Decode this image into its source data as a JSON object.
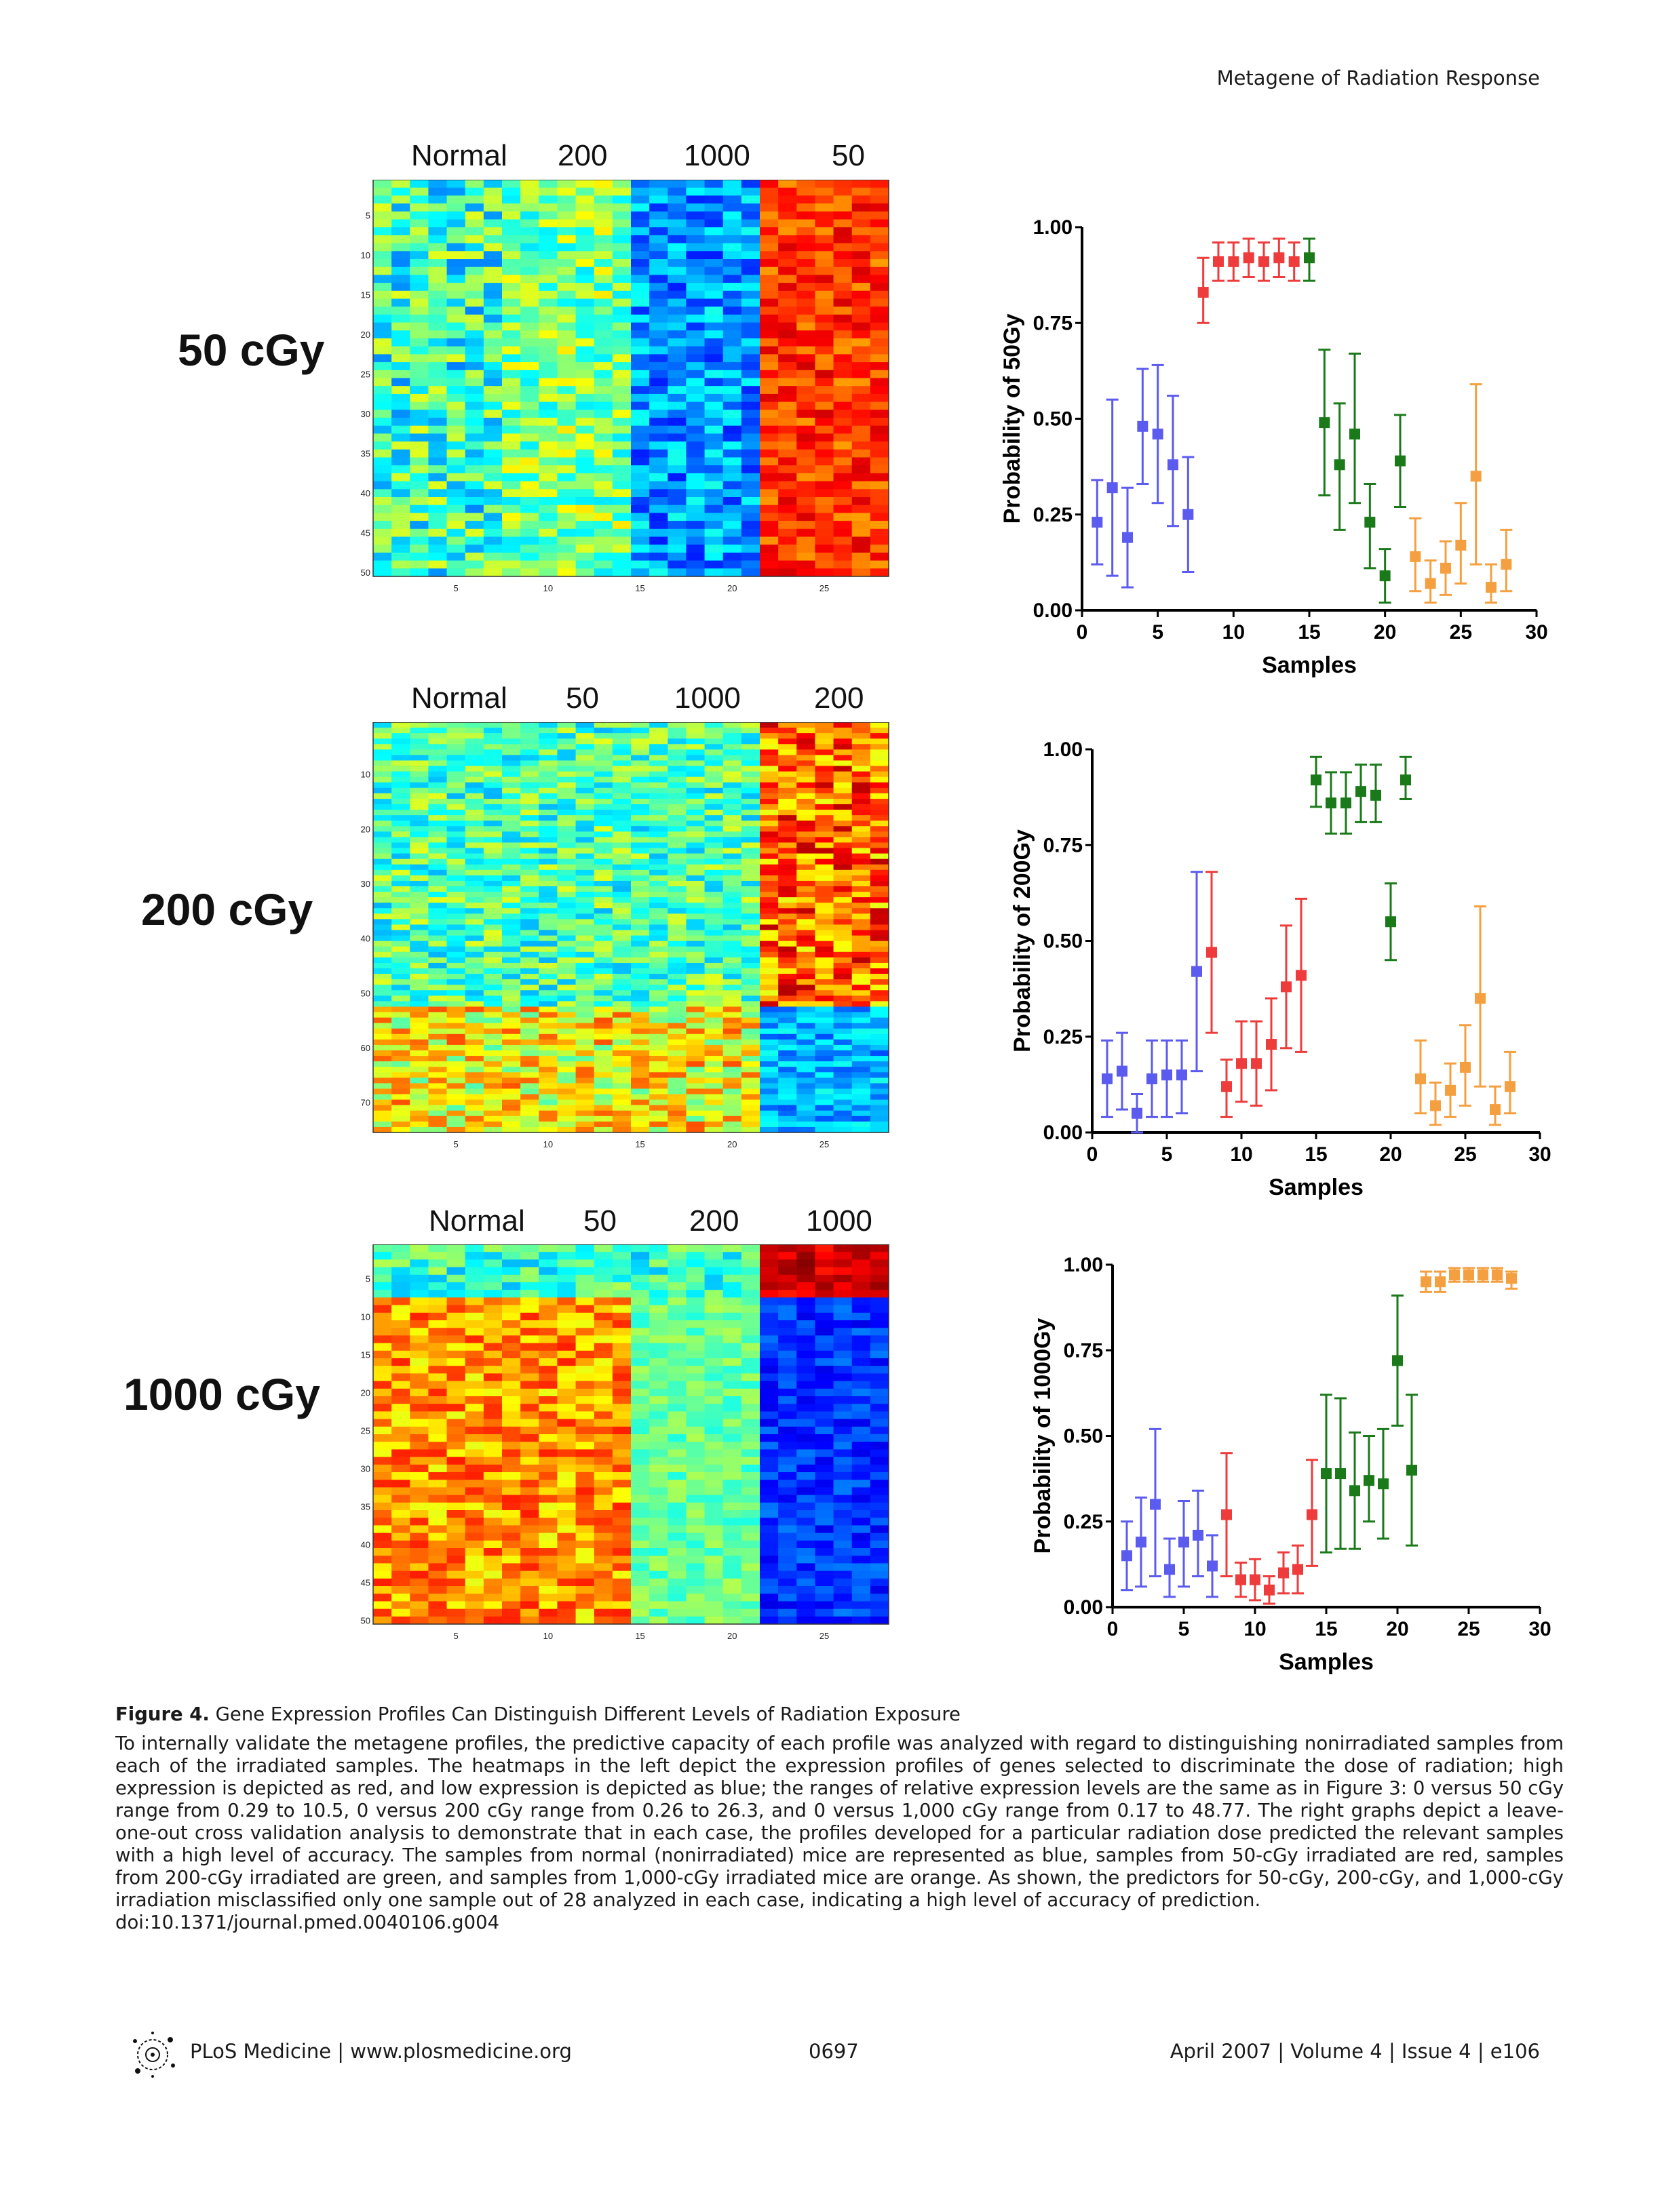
{
  "running_head": "Metagene of Radiation Response",
  "panels": [
    {
      "dose_label": "50 cGy",
      "heatmap_groups": [
        "Normal",
        "200",
        "1000",
        "50"
      ],
      "heatmap_gene_count": 50,
      "heatmap_row_ticks": [
        "5",
        "10",
        "15",
        "20",
        "25",
        "30",
        "35",
        "40",
        "45",
        "50"
      ],
      "heatmap_col_ticks": [
        "5",
        "10",
        "15",
        "20",
        "25"
      ],
      "heatmap_pattern": "last group high (red/orange), 1000 group low (blue), others mixed",
      "chart_data": {
        "type": "scatter",
        "title": "",
        "xlabel": "Samples",
        "ylabel": "Probability of 50Gy",
        "xlim": [
          0,
          30
        ],
        "ylim": [
          0,
          1
        ],
        "xticks": [
          "0",
          "5",
          "10",
          "15",
          "20",
          "25",
          "30"
        ],
        "yticks": [
          "0.00",
          "0.25",
          "0.50",
          "0.75",
          "1.00"
        ],
        "grid": false,
        "series": [
          {
            "color": "#5b5bf0",
            "x": [
              1,
              2,
              3,
              4,
              5,
              6,
              7
            ],
            "y": [
              0.23,
              0.32,
              0.19,
              0.48,
              0.46,
              0.38,
              0.25
            ],
            "lo": [
              0.12,
              0.09,
              0.06,
              0.33,
              0.28,
              0.22,
              0.1
            ],
            "hi": [
              0.34,
              0.55,
              0.32,
              0.63,
              0.64,
              0.56,
              0.4
            ]
          },
          {
            "color": "#ee3b3b",
            "x": [
              8,
              9,
              10,
              11,
              12,
              13,
              14
            ],
            "y": [
              0.83,
              0.91,
              0.91,
              0.92,
              0.91,
              0.92,
              0.91
            ],
            "lo": [
              0.75,
              0.86,
              0.86,
              0.87,
              0.86,
              0.87,
              0.86
            ],
            "hi": [
              0.92,
              0.96,
              0.96,
              0.97,
              0.96,
              0.97,
              0.96
            ]
          },
          {
            "color": "#1a7a1a",
            "x": [
              15,
              16,
              17,
              18,
              19,
              20,
              21
            ],
            "y": [
              0.92,
              0.49,
              0.38,
              0.46,
              0.23,
              0.09,
              0.39
            ],
            "lo": [
              0.86,
              0.3,
              0.21,
              0.28,
              0.11,
              0.02,
              0.27
            ],
            "hi": [
              0.97,
              0.68,
              0.54,
              0.67,
              0.33,
              0.16,
              0.51
            ]
          },
          {
            "color": "#f5a040",
            "x": [
              22,
              23,
              24,
              25,
              26,
              27,
              28
            ],
            "y": [
              0.14,
              0.07,
              0.11,
              0.17,
              0.35,
              0.06,
              0.12
            ],
            "lo": [
              0.05,
              0.02,
              0.04,
              0.07,
              0.12,
              0.02,
              0.05
            ],
            "hi": [
              0.24,
              0.13,
              0.18,
              0.28,
              0.59,
              0.12,
              0.21
            ]
          }
        ]
      }
    },
    {
      "dose_label": "200 cGy",
      "heatmap_groups": [
        "Normal",
        "50",
        "1000",
        "200"
      ],
      "heatmap_gene_count": 75,
      "heatmap_row_ticks": [
        "10",
        "20",
        "30",
        "40",
        "50",
        "60",
        "70"
      ],
      "heatmap_col_ticks": [
        "5",
        "10",
        "15",
        "20",
        "25"
      ],
      "heatmap_pattern": "top genes high in last group, bottom genes low in last group",
      "chart_data": {
        "type": "scatter",
        "title": "",
        "xlabel": "Samples",
        "ylabel": "Probability of 200Gy",
        "xlim": [
          0,
          30
        ],
        "ylim": [
          0,
          1
        ],
        "xticks": [
          "0",
          "5",
          "10",
          "15",
          "20",
          "25",
          "30"
        ],
        "yticks": [
          "0.00",
          "0.25",
          "0.50",
          "0.75",
          "1.00"
        ],
        "grid": false,
        "series": [
          {
            "color": "#5b5bf0",
            "x": [
              1,
              2,
              3,
              4,
              5,
              6,
              7
            ],
            "y": [
              0.14,
              0.16,
              0.05,
              0.14,
              0.15,
              0.15,
              0.42
            ],
            "lo": [
              0.04,
              0.06,
              0.0,
              0.04,
              0.04,
              0.05,
              0.16
            ],
            "hi": [
              0.24,
              0.26,
              0.1,
              0.24,
              0.24,
              0.24,
              0.68
            ]
          },
          {
            "color": "#ee3b3b",
            "x": [
              8,
              9,
              10,
              11,
              12,
              13,
              14
            ],
            "y": [
              0.47,
              0.12,
              0.18,
              0.18,
              0.23,
              0.38,
              0.41
            ],
            "lo": [
              0.26,
              0.04,
              0.08,
              0.07,
              0.11,
              0.22,
              0.21
            ],
            "hi": [
              0.68,
              0.19,
              0.29,
              0.29,
              0.35,
              0.54,
              0.61
            ]
          },
          {
            "color": "#1a7a1a",
            "x": [
              15,
              16,
              17,
              18,
              19,
              20,
              21
            ],
            "y": [
              0.92,
              0.86,
              0.86,
              0.89,
              0.88,
              0.55,
              0.92
            ],
            "lo": [
              0.85,
              0.78,
              0.78,
              0.81,
              0.81,
              0.45,
              0.87
            ],
            "hi": [
              0.98,
              0.94,
              0.94,
              0.96,
              0.96,
              0.65,
              0.98
            ]
          },
          {
            "color": "#f5a040",
            "x": [
              22,
              23,
              24,
              25,
              26,
              27,
              28
            ],
            "y": [
              0.14,
              0.07,
              0.11,
              0.17,
              0.35,
              0.06,
              0.12
            ],
            "lo": [
              0.05,
              0.02,
              0.04,
              0.07,
              0.12,
              0.02,
              0.05
            ],
            "hi": [
              0.24,
              0.13,
              0.18,
              0.28,
              0.59,
              0.12,
              0.21
            ]
          }
        ]
      }
    },
    {
      "dose_label": "1000 cGy",
      "heatmap_groups": [
        "Normal",
        "50",
        "200",
        "1000"
      ],
      "heatmap_gene_count": 50,
      "heatmap_row_ticks": [
        "5",
        "10",
        "15",
        "20",
        "25",
        "30",
        "35",
        "40",
        "45",
        "50"
      ],
      "heatmap_col_ticks": [
        "5",
        "10",
        "15",
        "20",
        "25"
      ],
      "heatmap_pattern": "top genes high in last group, most genes low (blue) in last group",
      "chart_data": {
        "type": "scatter",
        "title": "",
        "xlabel": "Samples",
        "ylabel": "Probability of 1000Gy",
        "xlim": [
          0,
          30
        ],
        "ylim": [
          0,
          1
        ],
        "xticks": [
          "0",
          "5",
          "10",
          "15",
          "20",
          "25",
          "30"
        ],
        "yticks": [
          "0.00",
          "0.25",
          "0.50",
          "0.75",
          "1.00"
        ],
        "grid": false,
        "series": [
          {
            "color": "#5b5bf0",
            "x": [
              1,
              2,
              3,
              4,
              5,
              6,
              7
            ],
            "y": [
              0.15,
              0.19,
              0.3,
              0.11,
              0.19,
              0.21,
              0.12
            ],
            "lo": [
              0.05,
              0.06,
              0.09,
              0.03,
              0.06,
              0.09,
              0.03
            ],
            "hi": [
              0.25,
              0.32,
              0.52,
              0.2,
              0.31,
              0.34,
              0.21
            ]
          },
          {
            "color": "#ee3b3b",
            "x": [
              8,
              9,
              10,
              11,
              12,
              13,
              14
            ],
            "y": [
              0.27,
              0.08,
              0.08,
              0.05,
              0.1,
              0.11,
              0.27
            ],
            "lo": [
              0.09,
              0.03,
              0.02,
              0.01,
              0.04,
              0.04,
              0.12
            ],
            "hi": [
              0.45,
              0.13,
              0.14,
              0.09,
              0.16,
              0.18,
              0.43
            ]
          },
          {
            "color": "#1a7a1a",
            "x": [
              15,
              16,
              17,
              18,
              19,
              20,
              21
            ],
            "y": [
              0.39,
              0.39,
              0.34,
              0.37,
              0.36,
              0.72,
              0.4
            ],
            "lo": [
              0.16,
              0.17,
              0.17,
              0.25,
              0.2,
              0.53,
              0.18
            ],
            "hi": [
              0.62,
              0.61,
              0.51,
              0.5,
              0.52,
              0.91,
              0.62
            ]
          },
          {
            "color": "#f5a040",
            "x": [
              22,
              23,
              24,
              25,
              26,
              27,
              28
            ],
            "y": [
              0.95,
              0.95,
              0.97,
              0.97,
              0.97,
              0.97,
              0.96
            ],
            "lo": [
              0.92,
              0.92,
              0.95,
              0.95,
              0.95,
              0.95,
              0.93
            ],
            "hi": [
              0.98,
              0.98,
              0.99,
              0.99,
              0.99,
              0.99,
              0.98
            ]
          }
        ]
      }
    }
  ],
  "caption": {
    "figure_label": "Figure 4.",
    "figure_title": "Gene Expression Profiles Can Distinguish Different Levels of Radiation Exposure",
    "body": "To internally validate the metagene profiles, the predictive capacity of each profile was analyzed with regard to distinguishing nonirradiated samples from each of the irradiated samples. The heatmaps in the left depict the expression profiles of genes selected to discriminate the dose of radiation; high expression is depicted as red, and low expression is depicted as blue; the ranges of relative expression levels are the same as in Figure 3: 0 versus 50 cGy range from 0.29 to 10.5, 0 versus 200 cGy range from 0.26 to 26.3, and 0 versus 1,000 cGy range from 0.17 to 48.77. The right graphs depict a leave-one-out cross validation analysis to demonstrate that in each case, the profiles developed for a particular radiation dose predicted the relevant samples with a high level of accuracy. The samples from normal (nonirradiated) mice are represented as blue, samples from 50-cGy irradiated are red, samples from 200-cGy irradiated are green, and samples from 1,000-cGy irradiated mice are orange. As shown, the predictors for 50-cGy, 200-cGy, and 1,000-cGy irradiation misclassified only one sample out of 28 analyzed in each case, indicating a high level of accuracy of prediction.",
    "doi": "doi:10.1371/journal.pmed.0040106.g004"
  },
  "footer": {
    "journal": "PLoS Medicine | www.plosmedicine.org",
    "page": "0697",
    "issue": "April 2007 | Volume 4 | Issue 4 | e106"
  },
  "colors": {
    "normal": "#5b5bf0",
    "dose50": "#ee3b3b",
    "dose200": "#1a7a1a",
    "dose1000": "#f5a040"
  }
}
